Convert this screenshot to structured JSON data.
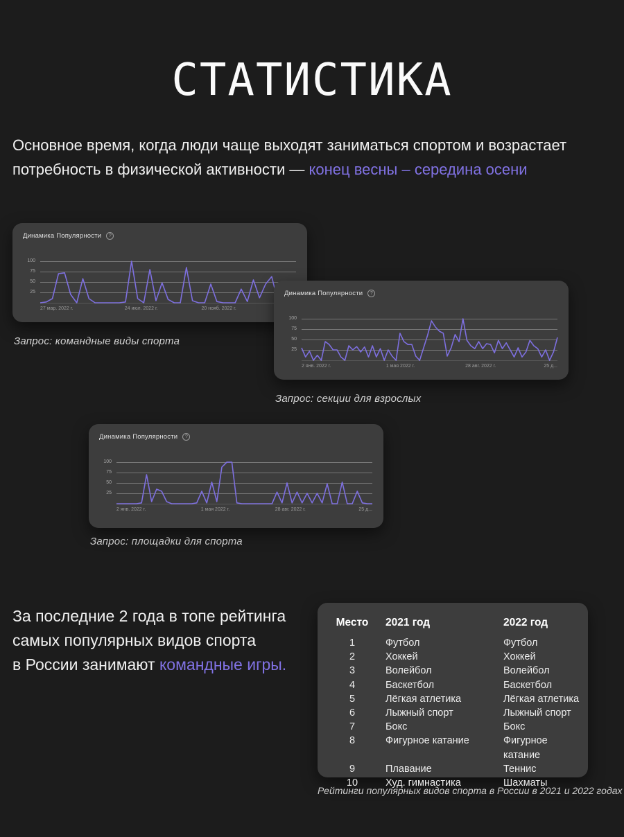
{
  "page": {
    "title": "СТАТИСТИКА",
    "intro_line1": "Основное время, когда люди чаще выходят заниматься спортом и возрастает",
    "intro_line2": "потребность в физической активности — ",
    "intro_accent": "конец весны – середина осени",
    "conclusion_line1": "За последние 2 года в топе рейтинга",
    "conclusion_line2": "самых популярных видов спорта",
    "conclusion_line3": "в России занимают ",
    "conclusion_accent": "командные игры."
  },
  "colors": {
    "background": "#1c1c1c",
    "card": "#3d3d3d",
    "accent_text": "#8172e4",
    "chart_line": "#7d6fdf",
    "gridline": "rgba(255,255,255,0.30)"
  },
  "chart_data": [
    {
      "type": "line",
      "title": "Динамика Популярности",
      "caption": "Запрос: командные виды спорта",
      "query": "командные виды спорта",
      "ylim": [
        0,
        100
      ],
      "yticks": [
        25,
        50,
        75,
        100
      ],
      "grid": true,
      "legend": "none",
      "xticks": [
        {
          "label": "27 мар. 2022 г.",
          "pos_pct": 0
        },
        {
          "label": "24 июл. 2022 г.",
          "pos_pct": 33
        },
        {
          "label": "20 нояб. 2022 г.",
          "pos_pct": 63
        }
      ],
      "values": [
        0,
        2,
        10,
        70,
        72,
        20,
        0,
        58,
        10,
        0,
        0,
        0,
        0,
        0,
        2,
        100,
        10,
        0,
        80,
        5,
        48,
        8,
        0,
        0,
        85,
        5,
        0,
        0,
        45,
        3,
        0,
        0,
        0,
        33,
        3,
        55,
        12,
        45,
        63,
        5,
        0,
        0,
        0
      ]
    },
    {
      "type": "line",
      "title": "Динамика Популярности",
      "caption": "Запрос: секции для взрослых",
      "query": "секции для взрослых",
      "ylim": [
        0,
        100
      ],
      "yticks": [
        25,
        50,
        75,
        100
      ],
      "grid": true,
      "legend": "none",
      "xticks": [
        {
          "label": "2 янв. 2022 г.",
          "pos_pct": 0
        },
        {
          "label": "1 мая 2022 г.",
          "pos_pct": 33
        },
        {
          "label": "28 авг. 2022 г.",
          "pos_pct": 64
        },
        {
          "label": "25 д...",
          "pos_pct": 100
        }
      ],
      "values": [
        30,
        8,
        22,
        0,
        12,
        0,
        45,
        38,
        25,
        25,
        8,
        0,
        35,
        25,
        33,
        20,
        32,
        8,
        35,
        8,
        28,
        0,
        25,
        10,
        0,
        65,
        45,
        38,
        38,
        10,
        0,
        30,
        60,
        95,
        80,
        70,
        65,
        10,
        30,
        62,
        45,
        100,
        48,
        35,
        28,
        45,
        28,
        40,
        38,
        18,
        48,
        28,
        42,
        25,
        8,
        30,
        8,
        20,
        48,
        35,
        28,
        8,
        25,
        0,
        20,
        55
      ]
    },
    {
      "type": "line",
      "title": "Динамика Популярности",
      "caption": "Запрос: площадки для спорта",
      "query": "площадки для спорта",
      "ylim": [
        0,
        100
      ],
      "yticks": [
        25,
        50,
        75,
        100
      ],
      "grid": true,
      "legend": "none",
      "xticks": [
        {
          "label": "2 янв. 2022 г.",
          "pos_pct": 0
        },
        {
          "label": "1 мая 2022 г.",
          "pos_pct": 33
        },
        {
          "label": "28 авг. 2022 г.",
          "pos_pct": 62
        },
        {
          "label": "25 д...",
          "pos_pct": 100
        }
      ],
      "values": [
        0,
        0,
        0,
        0,
        0,
        2,
        70,
        5,
        35,
        30,
        5,
        0,
        0,
        0,
        0,
        0,
        2,
        30,
        2,
        52,
        5,
        88,
        100,
        100,
        2,
        0,
        0,
        0,
        0,
        0,
        0,
        0,
        28,
        2,
        50,
        2,
        28,
        2,
        25,
        2,
        25,
        2,
        48,
        0,
        0,
        52,
        0,
        0,
        30,
        2,
        0,
        0
      ]
    }
  ],
  "table": {
    "caption": "Рейтинги популярных видов спорта в России в 2021 и 2022 годах",
    "headers": [
      "Место",
      "2021 год",
      "2022 год"
    ],
    "rows": [
      [
        "1",
        "Футбол",
        "Футбол"
      ],
      [
        "2",
        "Хоккей",
        "Хоккей"
      ],
      [
        "3",
        "Волейбол",
        "Волейбол"
      ],
      [
        "4",
        "Баскетбол",
        "Баскетбол"
      ],
      [
        "5",
        "Лёгкая атлетика",
        "Лёгкая атлетика"
      ],
      [
        "6",
        "Лыжный спорт",
        "Лыжный спорт"
      ],
      [
        "7",
        "Бокс",
        "Бокс"
      ],
      [
        "8",
        "Фигурное катание",
        "Фигурное катание"
      ],
      [
        "9",
        "Плавание",
        "Теннис"
      ],
      [
        "10",
        "Худ. гимнастика",
        "Шахматы"
      ]
    ]
  }
}
